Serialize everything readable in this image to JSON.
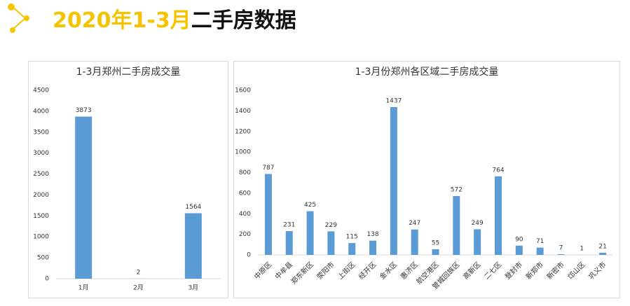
{
  "header": {
    "title_year": "2020年1-3月",
    "title_rest": "二手房数据"
  },
  "chart_data": [
    {
      "type": "bar",
      "title": "1-3月郑州二手房成交量",
      "categories": [
        "1月",
        "2月",
        "3月"
      ],
      "values": [
        3873,
        2,
        1564
      ],
      "color": "#5b9bd5",
      "ylim": [
        0,
        4500
      ],
      "yticks": [
        0,
        500,
        1000,
        1500,
        2000,
        2500,
        3000,
        3500,
        4000,
        4500
      ]
    },
    {
      "type": "bar",
      "title": "1-3月份郑州各区域二手房成交量",
      "categories": [
        "中原区",
        "中牟县",
        "郑东新区",
        "荥阳市",
        "上街区",
        "经开区",
        "金水区",
        "惠济区",
        "航空港区",
        "管城回族区",
        "高新区",
        "二七区",
        "登封市",
        "新郑市",
        "新密市",
        "邙山区",
        "巩义市"
      ],
      "values": [
        787,
        231,
        425,
        229,
        115,
        138,
        1437,
        247,
        55,
        572,
        249,
        764,
        90,
        71,
        7,
        1,
        21
      ],
      "color": "#5b9bd5",
      "ylim": [
        0,
        1600
      ],
      "yticks": [
        0,
        200,
        400,
        600,
        800,
        1000,
        1200,
        1400,
        1600
      ]
    }
  ]
}
